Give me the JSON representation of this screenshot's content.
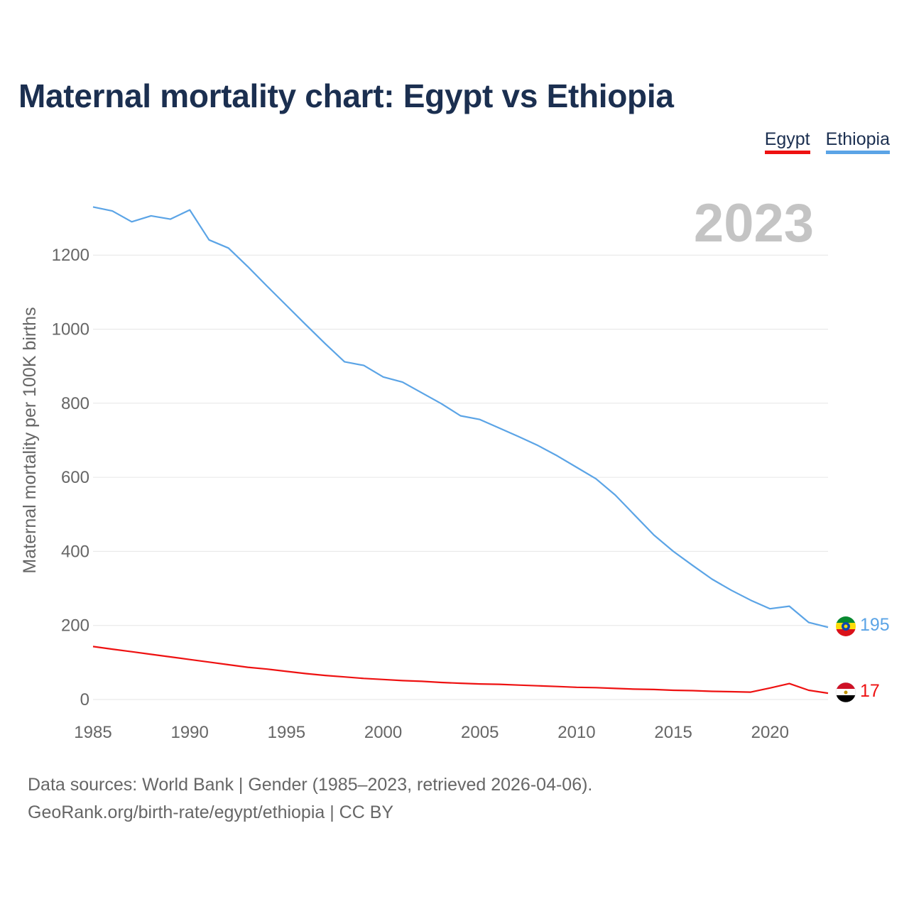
{
  "title": "Maternal mortality chart: Egypt vs Ethiopia",
  "legend": {
    "egypt": "Egypt",
    "ethiopia": "Ethiopia"
  },
  "colors": {
    "egypt": "#ee1111",
    "ethiopia": "#5ba4e6",
    "title": "#1b2f50",
    "year": "#c4c4c4"
  },
  "footer": {
    "line1": "Data sources: World Bank | Gender (1985–2023, retrieved 2026-04-06).",
    "line2": "GeoRank.org/birth-rate/egypt/ethiopia | CC BY"
  },
  "chart_data": {
    "type": "line",
    "title": "Maternal mortality chart: Egypt vs Ethiopia",
    "xlabel": "",
    "ylabel": "Maternal mortality per 100K births",
    "current_year": "2023",
    "xlim": [
      1985,
      2023
    ],
    "ylim": [
      0,
      1300
    ],
    "x_ticks": [
      1985,
      1990,
      1995,
      2000,
      2005,
      2010,
      2015,
      2020
    ],
    "y_ticks": [
      0,
      200,
      400,
      600,
      800,
      1000,
      1200
    ],
    "grid": true,
    "legend_position": "top-right",
    "x": [
      1985,
      1986,
      1987,
      1988,
      1989,
      1990,
      1991,
      1992,
      1993,
      1994,
      1995,
      1996,
      1997,
      1998,
      1999,
      2000,
      2001,
      2002,
      2003,
      2004,
      2005,
      2006,
      2007,
      2008,
      2009,
      2010,
      2011,
      2012,
      2013,
      2014,
      2015,
      2016,
      2017,
      2018,
      2019,
      2020,
      2021,
      2022,
      2023
    ],
    "series": [
      {
        "name": "Ethiopia",
        "color": "#5ba4e6",
        "end_label": "195",
        "values": [
          1330,
          1319,
          1290,
          1306,
          1297,
          1322,
          1241,
          1219,
          1169,
          1116,
          1064,
          1012,
          961,
          912,
          902,
          871,
          857,
          828,
          799,
          766,
          756,
          733,
          710,
          686,
          658,
          627,
          596,
          552,
          498,
          444,
          400,
          362,
          325,
          295,
          268,
          245,
          252,
          208,
          195
        ]
      },
      {
        "name": "Egypt",
        "color": "#ee1111",
        "end_label": "17",
        "values": [
          143,
          136,
          129,
          122,
          115,
          108,
          101,
          94,
          87,
          82,
          76,
          70,
          65,
          61,
          57,
          54,
          51,
          49,
          46,
          44,
          42,
          41,
          39,
          37,
          35,
          33,
          32,
          30,
          28,
          27,
          25,
          24,
          22,
          21,
          20,
          31,
          43,
          25,
          17
        ]
      }
    ]
  }
}
